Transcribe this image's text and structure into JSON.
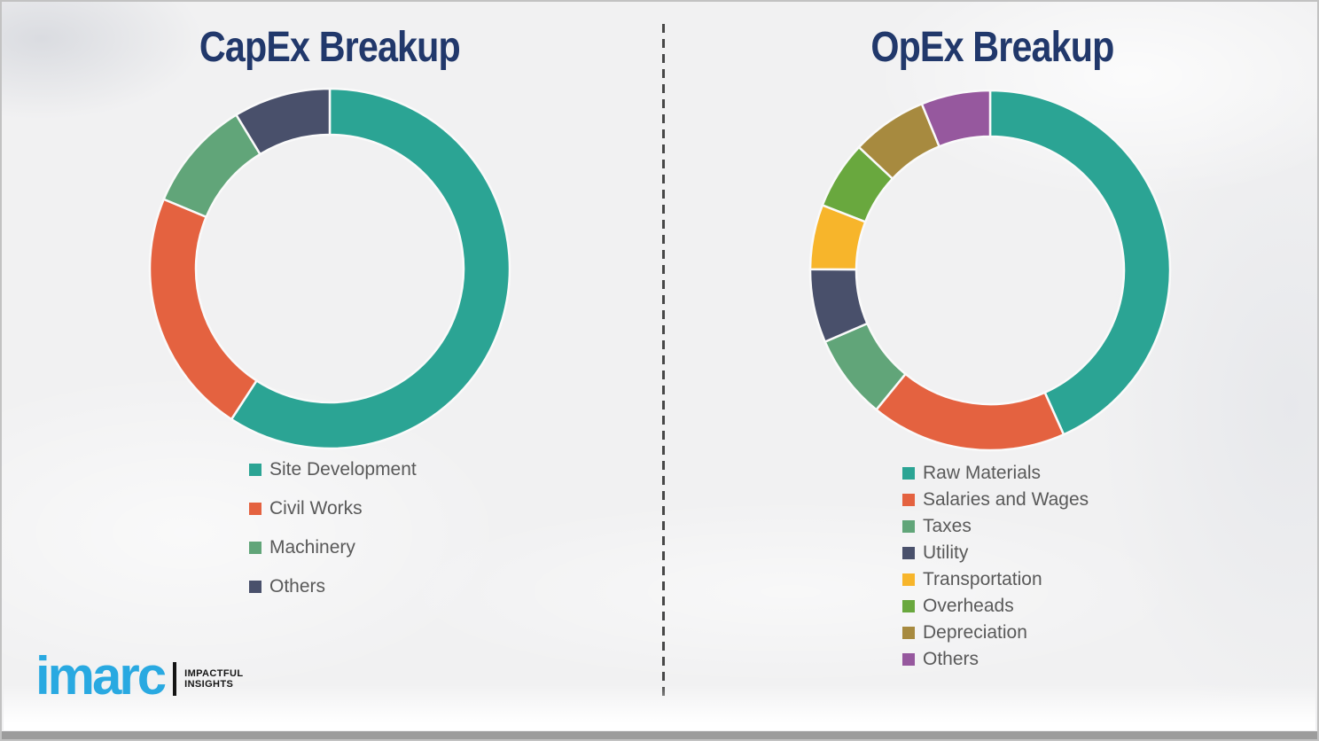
{
  "theme": {
    "background": "#f1f1f2",
    "border_color": "#c2c2c2",
    "title_color": "#21386b",
    "legend_text_color": "#595959",
    "divider_color": "#474747",
    "segment_gap_color": "#fafafa",
    "bottom_bar_color": "#9c9c9c"
  },
  "chart_data": [
    {
      "type": "donut",
      "title": "CapEx Breakup",
      "direction": "clockwise",
      "start_angle_deg": 0,
      "legend_position": "below-left",
      "outer_radius_px": 203,
      "inner_radius_px": 151,
      "series": [
        {
          "label": "Site Development",
          "percent": 59.2,
          "color": "#2BA494"
        },
        {
          "label": "Civil Works",
          "percent": 22.1,
          "color": "#E46240"
        },
        {
          "label": "Machinery",
          "percent": 10.0,
          "color": "#61A579"
        },
        {
          "label": "Others",
          "percent": 8.7,
          "color": "#49506B"
        }
      ]
    },
    {
      "type": "donut",
      "title": "OpEx Breakup",
      "direction": "clockwise",
      "start_angle_deg": 0,
      "legend_position": "below-left",
      "outer_radius_px": 203,
      "inner_radius_px": 151,
      "series": [
        {
          "label": "Raw Materials",
          "percent": 43.3,
          "color": "#2BA494"
        },
        {
          "label": "Salaries and Wages",
          "percent": 17.6,
          "color": "#E46240"
        },
        {
          "label": "Taxes",
          "percent": 7.6,
          "color": "#61A579"
        },
        {
          "label": "Utility",
          "percent": 6.6,
          "color": "#49506B"
        },
        {
          "label": "Transportation",
          "percent": 5.8,
          "color": "#F7B52B"
        },
        {
          "label": "Overheads",
          "percent": 6.1,
          "color": "#69A83E"
        },
        {
          "label": "Depreciation",
          "percent": 6.8,
          "color": "#A78A3F"
        },
        {
          "label": "Others",
          "percent": 6.2,
          "color": "#96589E"
        }
      ]
    }
  ],
  "logo": {
    "brand": "imarc",
    "brand_color": "#29A9E1",
    "tagline_line1": "IMPACTFUL",
    "tagline_line2": "INSIGHTS"
  }
}
